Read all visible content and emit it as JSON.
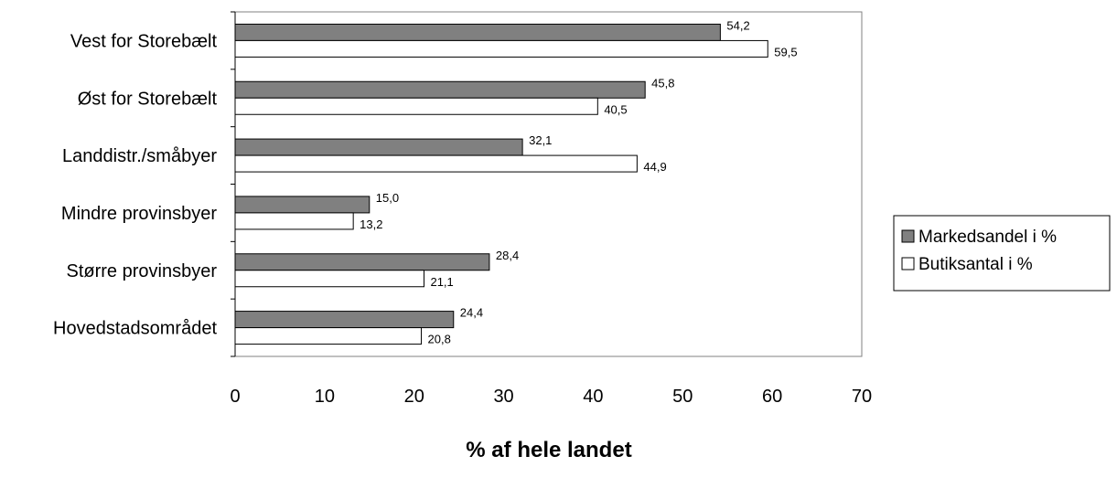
{
  "chart_data": {
    "type": "bar",
    "orientation": "horizontal",
    "categories": [
      "Vest for Storebælt",
      "Øst for Storebælt",
      "Landdistr./småbyer",
      "Mindre provinsbyer",
      "Større provinsbyer",
      "Hovedstadsområdet"
    ],
    "series": [
      {
        "name": "Markedsandel i %",
        "color": "#808080",
        "values": [
          54.2,
          45.8,
          32.1,
          15.0,
          28.4,
          24.4
        ],
        "labels": [
          "54,2",
          "45,8",
          "32,1",
          "15,0",
          "28,4",
          "24,4"
        ]
      },
      {
        "name": "Butiksantal i %",
        "color": "#ffffff",
        "values": [
          59.5,
          40.5,
          44.9,
          13.2,
          21.1,
          20.8
        ],
        "labels": [
          "59,5",
          "40,5",
          "44,9",
          "13,2",
          "21,1",
          "20,8"
        ]
      }
    ],
    "xlabel": "% af hele landet",
    "ylabel": "",
    "xlim": [
      0,
      70
    ],
    "xticks": [
      0,
      10,
      20,
      30,
      40,
      50,
      60,
      70
    ],
    "grid": false,
    "legend_position": "right"
  }
}
